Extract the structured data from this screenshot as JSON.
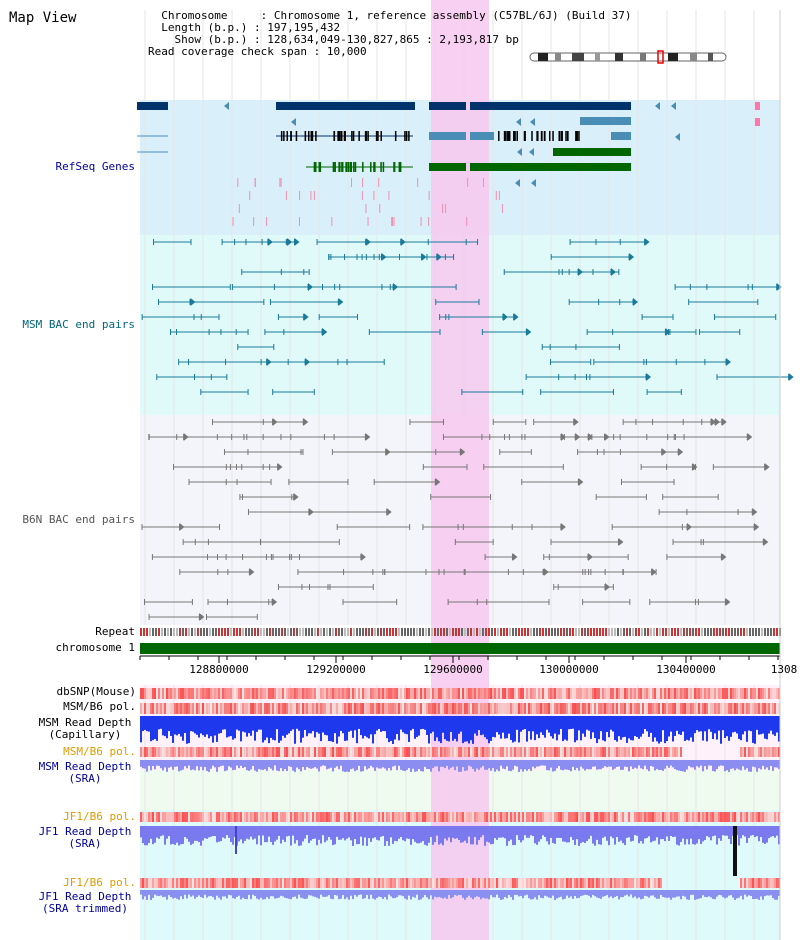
{
  "title": "Map View",
  "info": {
    "chromosome_key": "Chromosome",
    "chromosome_val": "Chromosome 1, reference assembly (C57BL/6J) (Build 37)",
    "length_key": "Length (b.p.)",
    "length_val": "197,195,432",
    "show_key": "Show (b.p.)",
    "show_val": "128,634,049-130,827,865 : 2,193,817 bp",
    "span_key": "Read coverage check span",
    "span_val": "10,000"
  },
  "tracks": {
    "refseq": "RefSeq Genes",
    "msm_bac": "MSM BAC end pairs",
    "b6n_bac": "B6N BAC end pairs",
    "repeat": "Repeat",
    "chromosome": "chromosome 1",
    "dbsnp": "dbSNP(Mouse)",
    "msm_b6_pol": "MSM/B6 pol.",
    "msm_depth_cap_1": "MSM Read Depth",
    "msm_depth_cap_2": "(Capillary)",
    "msm_b6_pol2": "MSM/B6 pol.",
    "msm_depth_sra_1": "MSM Read Depth",
    "msm_depth_sra_2": "(SRA)",
    "jf1_b6_pol": "JF1/B6 pol.",
    "jf1_depth_1": "JF1 Read Depth",
    "jf1_depth_2": "(SRA)",
    "jf1_b6_pol2": "JF1/B6 pol.",
    "jf1_trim_1": "JF1 Read Depth",
    "jf1_trim_2": "(SRA trimmed)"
  },
  "axis": {
    "ticks": [
      "128800000",
      "129200000",
      "129600000",
      "130000000",
      "130400000",
      "1308"
    ]
  },
  "colors": {
    "refseq_bg": "#d9effa",
    "msm_bg": "#e0fafa",
    "b6n_bg": "#f4f4fb",
    "highlight": "#f7c8ef",
    "gene_dark": "#00336b",
    "gene_mid": "#4a8db5",
    "gene_green": "#006600",
    "bac_teal": "#1a7a99",
    "bac_gray": "#777777",
    "chromosome_bar": "#006600",
    "orange_label": "#e09a00",
    "navy_label": "#000099",
    "teal_label": "#006677"
  }
}
